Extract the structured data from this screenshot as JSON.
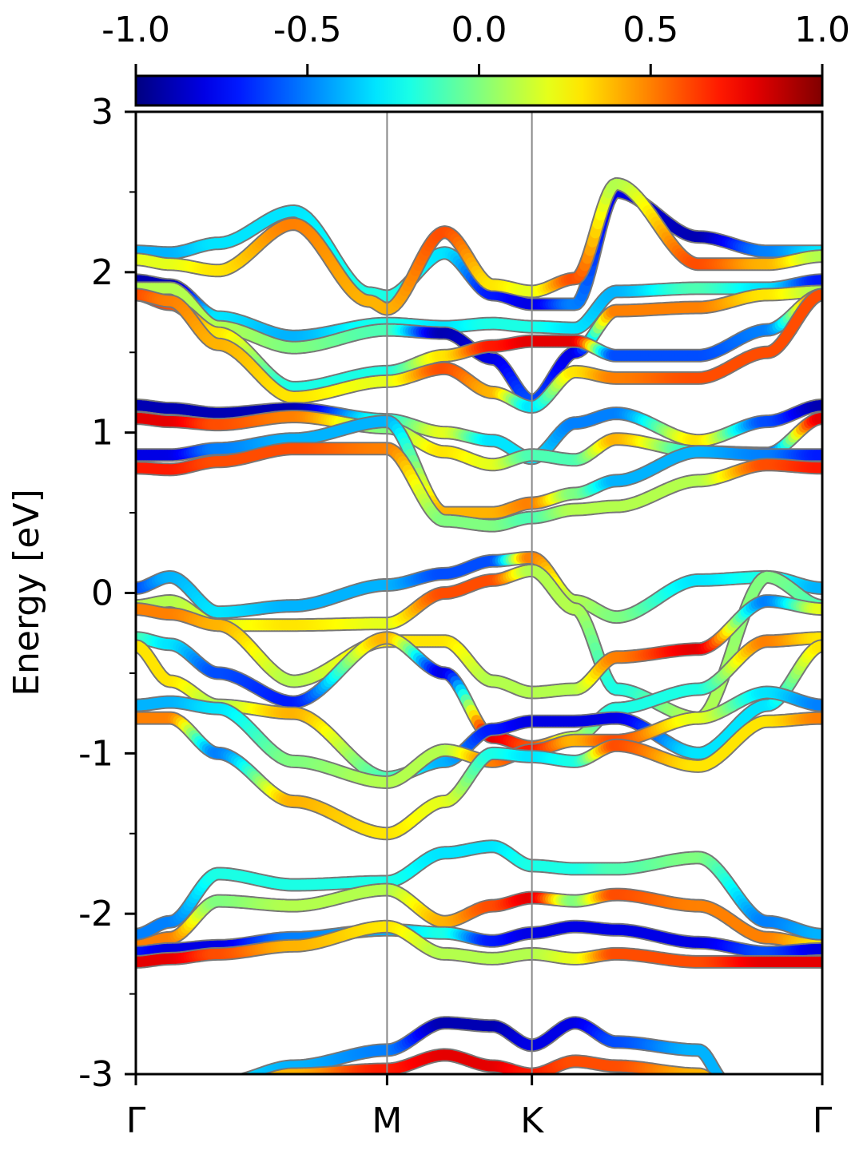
{
  "chart_data": {
    "type": "line",
    "ylabel": "Energy [eV]",
    "ylim": [
      -3,
      3
    ],
    "yticks": [
      "-3",
      "-2",
      "-1",
      "0",
      "1",
      "2",
      "3"
    ],
    "yticks_values": [
      -3,
      -2,
      -1,
      0,
      1,
      2,
      3
    ],
    "x_kpoints": [
      {
        "label": "Γ",
        "x": 0.0
      },
      {
        "label": "M",
        "x": 0.366
      },
      {
        "label": "K",
        "x": 0.577
      },
      {
        "label": "Γ",
        "x": 1.0
      }
    ],
    "colorbar": {
      "colormap": "jet",
      "range": [
        -1.0,
        1.0
      ],
      "tick_labels": [
        "-1.0",
        "-0.5",
        "0.0",
        "0.5",
        "1.0"
      ],
      "tick_values": [
        -1.0,
        -0.5,
        0.0,
        0.5,
        1.0
      ]
    },
    "bands": [
      {
        "x": [
          0,
          0.05,
          0.12,
          0.23,
          0.34,
          0.366,
          0.45,
          0.52,
          0.577,
          0.64,
          0.7,
          0.82,
          0.92,
          1.0
        ],
        "y": [
          2.13,
          2.12,
          2.18,
          2.38,
          1.87,
          1.85,
          2.12,
          1.86,
          1.8,
          1.8,
          2.5,
          2.22,
          2.13,
          2.13
        ],
        "c": [
          -0.4,
          -0.4,
          -0.3,
          -0.3,
          -0.2,
          -0.2,
          -0.3,
          -0.7,
          -0.8,
          -0.5,
          -0.8,
          -0.9,
          -0.5,
          -0.3
        ]
      },
      {
        "x": [
          0,
          0.05,
          0.12,
          0.23,
          0.34,
          0.366,
          0.45,
          0.52,
          0.577,
          0.64,
          0.7,
          0.82,
          0.92,
          1.0
        ],
        "y": [
          2.08,
          2.05,
          2.01,
          2.3,
          1.82,
          1.77,
          2.25,
          1.92,
          1.88,
          1.96,
          2.55,
          2.05,
          2.05,
          2.1
        ],
        "c": [
          0.2,
          0.2,
          0.3,
          0.5,
          0.4,
          0.4,
          0.6,
          0.3,
          0.2,
          0.6,
          0.1,
          0.6,
          0.4,
          0.1
        ]
      },
      {
        "x": [
          0,
          0.05,
          0.12,
          0.23,
          0.366,
          0.45,
          0.52,
          0.577,
          0.64,
          0.7,
          0.82,
          0.92,
          1.0
        ],
        "y": [
          1.95,
          1.92,
          1.72,
          1.6,
          1.68,
          1.66,
          1.68,
          1.66,
          1.65,
          1.88,
          1.9,
          1.9,
          1.95
        ],
        "c": [
          -0.9,
          -0.9,
          -0.3,
          -0.4,
          -0.2,
          -0.3,
          -0.2,
          -0.2,
          -0.3,
          -0.4,
          -0.1,
          -0.3,
          -0.7
        ]
      },
      {
        "x": [
          0,
          0.05,
          0.12,
          0.23,
          0.366,
          0.45,
          0.52,
          0.577,
          0.64,
          0.7,
          0.82,
          0.92,
          1.0
        ],
        "y": [
          1.9,
          1.9,
          1.66,
          1.53,
          1.64,
          1.62,
          1.46,
          1.2,
          1.5,
          1.76,
          1.78,
          1.86,
          1.88
        ],
        "c": [
          0.1,
          0.1,
          0.1,
          0.0,
          -0.1,
          -0.9,
          -0.8,
          -0.6,
          -0.8,
          0.5,
          0.5,
          0.3,
          0.1
        ]
      },
      {
        "x": [
          0,
          0.05,
          0.12,
          0.23,
          0.366,
          0.45,
          0.52,
          0.577,
          0.64,
          0.7,
          0.82,
          0.92,
          1.0
        ],
        "y": [
          1.86,
          1.8,
          1.62,
          1.28,
          1.38,
          1.48,
          1.54,
          1.57,
          1.57,
          1.48,
          1.48,
          1.64,
          1.86
        ],
        "c": [
          0.8,
          0.6,
          0.3,
          -0.2,
          -0.2,
          0.3,
          0.7,
          0.8,
          0.8,
          -0.6,
          -0.6,
          -0.5,
          0.6
        ]
      },
      {
        "x": [
          0,
          0.05,
          0.12,
          0.23,
          0.366,
          0.45,
          0.52,
          0.577,
          0.64,
          0.7,
          0.82,
          0.92,
          1.0
        ],
        "y": [
          1.86,
          1.82,
          1.55,
          1.22,
          1.32,
          1.4,
          1.25,
          1.16,
          1.38,
          1.34,
          1.34,
          1.5,
          1.86
        ],
        "c": [
          0.6,
          0.5,
          0.4,
          0.3,
          0.2,
          0.6,
          0.4,
          -0.3,
          0.3,
          0.5,
          0.6,
          0.6,
          0.6
        ]
      },
      {
        "x": [
          0,
          0.05,
          0.12,
          0.23,
          0.366,
          0.45,
          0.52,
          0.577,
          0.64,
          0.7,
          0.82,
          0.92,
          1.0
        ],
        "y": [
          1.17,
          1.15,
          1.12,
          1.15,
          1.08,
          1.0,
          0.95,
          0.84,
          1.06,
          1.12,
          0.95,
          1.07,
          1.17
        ],
        "c": [
          -0.9,
          -0.9,
          -0.9,
          -0.9,
          -0.2,
          0.2,
          -0.3,
          -0.3,
          -0.5,
          -0.5,
          0.3,
          -0.6,
          -0.9
        ]
      },
      {
        "x": [
          0,
          0.05,
          0.12,
          0.23,
          0.366,
          0.45,
          0.52,
          0.577,
          0.64,
          0.7,
          0.82,
          0.92,
          1.0
        ],
        "y": [
          1.09,
          1.07,
          1.05,
          1.1,
          1.03,
          0.88,
          0.8,
          0.86,
          0.83,
          0.96,
          0.88,
          0.87,
          1.09
        ],
        "c": [
          0.8,
          0.8,
          0.6,
          0.5,
          0.0,
          0.3,
          0.2,
          -0.1,
          -0.1,
          0.4,
          -0.2,
          -0.6,
          0.8
        ]
      },
      {
        "x": [
          0,
          0.05,
          0.12,
          0.23,
          0.366,
          0.45,
          0.52,
          0.577,
          0.64,
          0.7,
          0.82,
          0.92,
          1.0
        ],
        "y": [
          0.86,
          0.86,
          0.9,
          0.96,
          1.07,
          0.5,
          0.5,
          0.56,
          0.62,
          0.7,
          0.88,
          0.86,
          0.86
        ],
        "c": [
          -0.8,
          -0.8,
          -0.5,
          -0.4,
          -0.4,
          0.4,
          0.4,
          0.5,
          0.0,
          -0.4,
          -0.4,
          -0.5,
          -0.7
        ]
      },
      {
        "x": [
          0,
          0.05,
          0.12,
          0.23,
          0.366,
          0.45,
          0.52,
          0.577,
          0.64,
          0.7,
          0.82,
          0.92,
          1.0
        ],
        "y": [
          0.78,
          0.77,
          0.82,
          0.9,
          0.9,
          0.45,
          0.42,
          0.47,
          0.52,
          0.54,
          0.7,
          0.8,
          0.78
        ],
        "c": [
          0.7,
          0.7,
          0.6,
          0.6,
          0.5,
          0.0,
          0.0,
          -0.1,
          0.1,
          0.1,
          0.1,
          0.6,
          0.7
        ]
      },
      {
        "x": [
          0,
          0.05,
          0.12,
          0.23,
          0.366,
          0.45,
          0.52,
          0.577,
          0.64,
          0.7,
          0.82,
          0.92,
          1.0
        ],
        "y": [
          0.03,
          0.1,
          -0.12,
          -0.08,
          0.05,
          0.12,
          0.2,
          0.22,
          -0.05,
          -0.15,
          0.08,
          0.1,
          0.03
        ],
        "c": [
          -0.6,
          -0.4,
          -0.3,
          -0.4,
          -0.4,
          -0.6,
          -0.6,
          0.5,
          0.1,
          0.0,
          -0.3,
          -0.2,
          -0.4
        ]
      },
      {
        "x": [
          0,
          0.05,
          0.12,
          0.23,
          0.366,
          0.45,
          0.52,
          0.577,
          0.64,
          0.7,
          0.82,
          0.92,
          1.0
        ],
        "y": [
          -0.08,
          -0.05,
          -0.2,
          -0.2,
          -0.19,
          0.0,
          0.08,
          0.14,
          -0.1,
          -0.6,
          -0.78,
          0.1,
          -0.08
        ],
        "c": [
          0.1,
          0.1,
          0.2,
          0.3,
          0.2,
          0.6,
          0.6,
          0.1,
          0.1,
          -0.2,
          0.1,
          0.0,
          -0.1
        ]
      },
      {
        "x": [
          0,
          0.05,
          0.12,
          0.23,
          0.366,
          0.45,
          0.52,
          0.577,
          0.64,
          0.7,
          0.82,
          0.92,
          1.0
        ],
        "y": [
          -0.1,
          -0.13,
          -0.2,
          -0.55,
          -0.3,
          -0.3,
          -0.55,
          -0.62,
          -0.6,
          -0.4,
          -0.35,
          -0.05,
          -0.1
        ],
        "c": [
          0.5,
          0.5,
          0.4,
          0.1,
          0.3,
          0.3,
          0.1,
          0.1,
          0.1,
          0.5,
          0.8,
          -0.5,
          0.2
        ]
      },
      {
        "x": [
          0,
          0.05,
          0.12,
          0.23,
          0.366,
          0.45,
          0.52,
          0.577,
          0.64,
          0.7,
          0.82,
          0.92,
          1.0
        ],
        "y": [
          -0.28,
          -0.32,
          -0.5,
          -0.68,
          -0.28,
          -0.5,
          -0.9,
          -0.96,
          -0.9,
          -0.72,
          -0.6,
          -0.3,
          -0.28
        ],
        "c": [
          -0.1,
          -0.3,
          -0.6,
          -0.7,
          0.4,
          -0.8,
          0.8,
          0.6,
          0.1,
          -0.2,
          -0.2,
          0.5,
          0.3
        ]
      },
      {
        "x": [
          0,
          0.05,
          0.12,
          0.23,
          0.366,
          0.45,
          0.52,
          0.577,
          0.64,
          0.7,
          0.82,
          0.92,
          1.0
        ],
        "y": [
          -0.33,
          -0.55,
          -0.7,
          -0.75,
          -1.15,
          -1.05,
          -0.85,
          -0.8,
          -0.8,
          -0.78,
          -1.0,
          -0.7,
          -0.33
        ],
        "c": [
          0.3,
          0.3,
          0.1,
          0.4,
          -0.1,
          -0.4,
          -0.7,
          -0.8,
          -0.8,
          -0.8,
          -0.3,
          -0.3,
          0.3
        ]
      },
      {
        "x": [
          0,
          0.05,
          0.12,
          0.23,
          0.366,
          0.45,
          0.52,
          0.577,
          0.64,
          0.7,
          0.82,
          0.92,
          1.0
        ],
        "y": [
          -0.7,
          -0.68,
          -0.72,
          -1.05,
          -1.18,
          -0.98,
          -1.05,
          -0.98,
          -0.92,
          -0.92,
          -0.78,
          -0.62,
          -0.7
        ],
        "c": [
          -0.4,
          -0.4,
          -0.3,
          0.0,
          0.1,
          0.1,
          0.5,
          0.7,
          0.4,
          0.6,
          0.2,
          -0.3,
          -0.5
        ]
      },
      {
        "x": [
          0,
          0.05,
          0.12,
          0.23,
          0.366,
          0.45,
          0.52,
          0.577,
          0.64,
          0.7,
          0.82,
          0.92,
          1.0
        ],
        "y": [
          -0.78,
          -0.78,
          -1.0,
          -1.3,
          -1.5,
          -1.3,
          -1.0,
          -1.02,
          -1.05,
          -0.95,
          -1.08,
          -0.8,
          -0.78
        ],
        "c": [
          0.5,
          0.5,
          -0.5,
          0.4,
          0.3,
          0.2,
          -0.2,
          -0.3,
          -0.2,
          0.6,
          0.3,
          0.3,
          0.5
        ]
      },
      {
        "x": [
          0,
          0.05,
          0.12,
          0.23,
          0.366,
          0.45,
          0.52,
          0.577,
          0.64,
          0.7,
          0.82,
          0.92,
          1.0
        ],
        "y": [
          -2.13,
          -2.05,
          -1.75,
          -1.82,
          -1.8,
          -1.62,
          -1.58,
          -1.7,
          -1.72,
          -1.72,
          -1.65,
          -2.05,
          -2.13
        ],
        "c": [
          -0.5,
          -0.5,
          -0.2,
          -0.2,
          -0.2,
          -0.3,
          -0.3,
          -0.2,
          -0.2,
          -0.1,
          0.0,
          -0.5,
          -0.4
        ]
      },
      {
        "x": [
          0,
          0.05,
          0.12,
          0.23,
          0.366,
          0.45,
          0.52,
          0.577,
          0.64,
          0.7,
          0.82,
          0.92,
          1.0
        ],
        "y": [
          -2.2,
          -2.15,
          -1.92,
          -1.95,
          -1.85,
          -2.05,
          -1.95,
          -1.9,
          -1.92,
          -1.88,
          -1.95,
          -2.15,
          -2.2
        ],
        "c": [
          0.5,
          0.5,
          0.0,
          0.1,
          0.1,
          0.4,
          0.6,
          0.8,
          0.0,
          0.6,
          0.5,
          0.5,
          0.3
        ]
      },
      {
        "x": [
          0,
          0.05,
          0.12,
          0.23,
          0.366,
          0.45,
          0.52,
          0.577,
          0.64,
          0.7,
          0.82,
          0.92,
          1.0
        ],
        "y": [
          -2.24,
          -2.22,
          -2.2,
          -2.15,
          -2.1,
          -2.12,
          -2.17,
          -2.12,
          -2.08,
          -2.1,
          -2.18,
          -2.24,
          -2.22
        ],
        "c": [
          -0.7,
          -0.8,
          -0.8,
          -0.5,
          -0.4,
          -0.2,
          -0.7,
          -0.8,
          -0.8,
          -0.8,
          -0.8,
          -0.6,
          -0.8
        ]
      },
      {
        "x": [
          0,
          0.05,
          0.12,
          0.23,
          0.366,
          0.45,
          0.52,
          0.577,
          0.64,
          0.7,
          0.82,
          0.92,
          1.0
        ],
        "y": [
          -2.3,
          -2.28,
          -2.25,
          -2.2,
          -2.08,
          -2.25,
          -2.28,
          -2.25,
          -2.28,
          -2.25,
          -2.3,
          -2.3,
          -2.3
        ],
        "c": [
          0.8,
          0.8,
          0.6,
          0.4,
          0.3,
          0.1,
          0.1,
          0.1,
          0.2,
          0.6,
          0.6,
          0.8,
          0.8
        ]
      },
      {
        "x": [
          0.13,
          0.23,
          0.366,
          0.45,
          0.52,
          0.577,
          0.64,
          0.7,
          0.82,
          0.86
        ],
        "y": [
          -3.05,
          -2.95,
          -2.85,
          -2.68,
          -2.7,
          -2.82,
          -2.68,
          -2.8,
          -2.85,
          -3.05
        ],
        "c": [
          -0.3,
          -0.4,
          -0.5,
          -0.9,
          -0.9,
          -0.8,
          -0.8,
          -0.6,
          -0.4,
          -0.4
        ]
      },
      {
        "x": [
          0.13,
          0.23,
          0.366,
          0.45,
          0.52,
          0.577,
          0.64,
          0.7,
          0.82,
          0.86
        ],
        "y": [
          -3.1,
          -3.0,
          -2.97,
          -2.88,
          -2.95,
          -3.0,
          -2.92,
          -2.95,
          -3.0,
          -3.1
        ],
        "c": [
          0.4,
          0.4,
          0.7,
          0.8,
          0.8,
          0.7,
          0.6,
          0.6,
          0.4,
          0.4
        ]
      }
    ]
  }
}
